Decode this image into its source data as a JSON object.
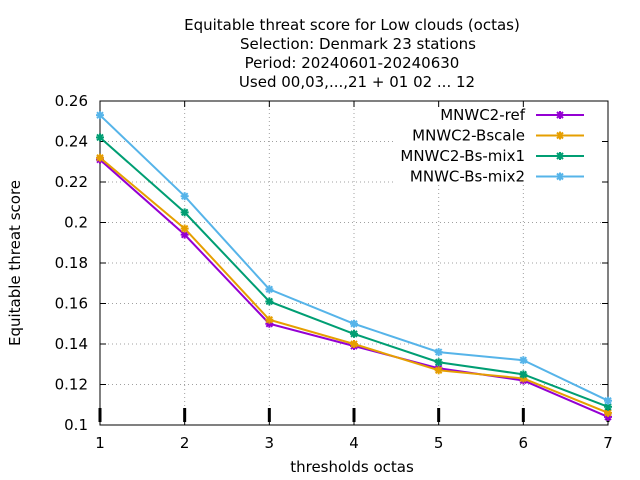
{
  "chart_data": {
    "type": "line",
    "title_lines": [
      "Equitable threat score  for Low clouds (octas)",
      "Selection: Denmark     23 stations",
      "Period: 20240601-20240630",
      "Used 00,03,...,21 + 01 02 ... 12"
    ],
    "xlabel": "thresholds octas",
    "ylabel": "Equitable threat score",
    "x": [
      1,
      2,
      3,
      4,
      5,
      6,
      7
    ],
    "xlim": [
      1,
      7
    ],
    "ylim": [
      0.1,
      0.26
    ],
    "xticks": [
      "1",
      "2",
      "3",
      "4",
      "5",
      "6",
      "7"
    ],
    "yticks": [
      "0.1",
      "0.12",
      "0.14",
      "0.16",
      "0.18",
      "0.2",
      "0.22",
      "0.24",
      "0.26"
    ],
    "grid": true,
    "legend_position": "top-right",
    "series": [
      {
        "name": "MNWC2-ref",
        "color": "#9400d3",
        "values": [
          0.231,
          0.194,
          0.15,
          0.139,
          0.128,
          0.122,
          0.104
        ]
      },
      {
        "name": "MNWC2-Bscale",
        "color": "#e69f00",
        "values": [
          0.232,
          0.197,
          0.152,
          0.14,
          0.127,
          0.123,
          0.106
        ]
      },
      {
        "name": "MNWC2-Bs-mix1",
        "color": "#009e73",
        "values": [
          0.242,
          0.205,
          0.161,
          0.145,
          0.131,
          0.125,
          0.109
        ]
      },
      {
        "name": "MNWC-Bs-mix2",
        "color": "#56b4e9",
        "values": [
          0.253,
          0.213,
          0.167,
          0.15,
          0.136,
          0.132,
          0.112
        ]
      }
    ]
  }
}
